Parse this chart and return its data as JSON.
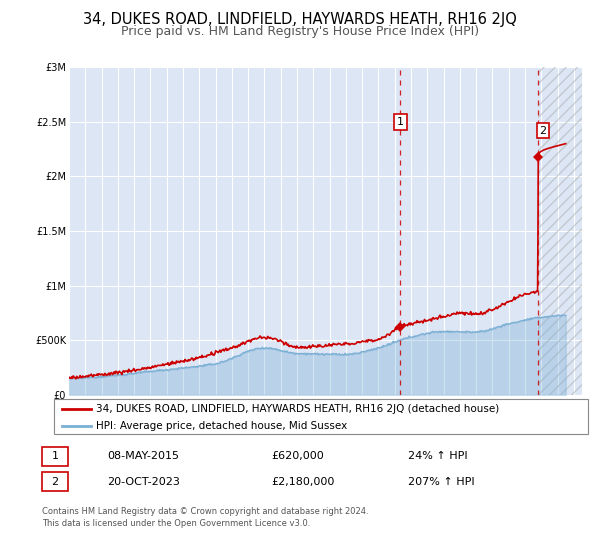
{
  "title": "34, DUKES ROAD, LINDFIELD, HAYWARDS HEATH, RH16 2JQ",
  "subtitle": "Price paid vs. HM Land Registry's House Price Index (HPI)",
  "background_color": "#ffffff",
  "plot_bg_color": "#dce6f5",
  "grid_color": "#ffffff",
  "ylim": [
    0,
    3000000
  ],
  "xlim_start": 1995.0,
  "xlim_end": 2026.5,
  "ytick_labels": [
    "£0",
    "£500K",
    "£1M",
    "£1.5M",
    "£2M",
    "£2.5M",
    "£3M"
  ],
  "ytick_values": [
    0,
    500000,
    1000000,
    1500000,
    2000000,
    2500000,
    3000000
  ],
  "property_color": "#cc0000",
  "hpi_color": "#7bafd4",
  "point1_x": 2015.35,
  "point1_y": 620000,
  "point2_x": 2023.8,
  "point2_y": 2180000,
  "vline1_x": 2015.35,
  "vline2_x": 2023.8,
  "legend_property": "34, DUKES ROAD, LINDFIELD, HAYWARDS HEATH, RH16 2JQ (detached house)",
  "legend_hpi": "HPI: Average price, detached house, Mid Sussex",
  "table_row1": [
    "1",
    "08-MAY-2015",
    "£620,000",
    "24% ↑ HPI"
  ],
  "table_row2": [
    "2",
    "20-OCT-2023",
    "£2,180,000",
    "207% ↑ HPI"
  ],
  "footer": "Contains HM Land Registry data © Crown copyright and database right 2024.\nThis data is licensed under the Open Government Licence v3.0.",
  "title_fontsize": 10.5,
  "subtitle_fontsize": 9,
  "tick_fontsize": 7,
  "legend_fontsize": 7.5,
  "footer_fontsize": 6
}
